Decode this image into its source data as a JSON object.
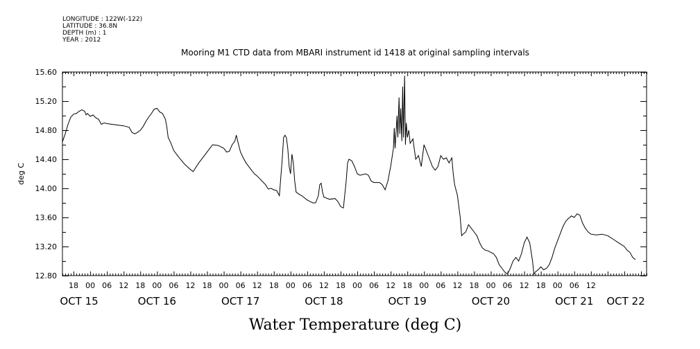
{
  "metadata": {
    "longitude": "LONGITUDE : 122W(-122)",
    "latitude": "LATITUDE : 36.8N",
    "depth": "DEPTH (m) : 1",
    "year": "YEAR : 2012"
  },
  "chart_data": {
    "type": "line",
    "title": "Mooring M1 CTD data from MBARI instrument id 1418 at original sampling intervals",
    "xlabel": "Water Temperature (deg C)",
    "ylabel": "deg C",
    "ylim": [
      12.8,
      15.6
    ],
    "xlim_hours": [
      -10,
      200
    ],
    "yticks": [
      "15.60",
      "15.20",
      "14.80",
      "14.40",
      "14.00",
      "13.60",
      "13.20",
      "12.80"
    ],
    "hour_ticks": [
      "18",
      "00",
      "06",
      "12",
      "18",
      "00",
      "06",
      "12",
      "18",
      "00",
      "06",
      "12",
      "18",
      "00",
      "06",
      "12",
      "18",
      "00",
      "06",
      "12",
      "18",
      "00",
      "06",
      "12",
      "18",
      "00",
      "06",
      "12",
      "18",
      "00",
      "06",
      "12"
    ],
    "day_labels": [
      "OCT 15",
      "OCT 16",
      "OCT 17",
      "OCT 18",
      "OCT 19",
      "OCT 20",
      "OCT 21",
      "OCT 22"
    ],
    "series": [
      {
        "points": [
          [
            -10.0,
            14.64
          ],
          [
            -9.0,
            14.75
          ],
          [
            -8.0,
            14.88
          ],
          [
            -7.0,
            14.98
          ],
          [
            -6.0,
            15.02
          ],
          [
            -5.0,
            15.03
          ],
          [
            -4.0,
            15.06
          ],
          [
            -3.0,
            15.08
          ],
          [
            -2.0,
            15.06
          ],
          [
            -1.5,
            15.01
          ],
          [
            -1.0,
            15.03
          ],
          [
            0.0,
            14.99
          ],
          [
            1.0,
            15.01
          ],
          [
            2.0,
            14.97
          ],
          [
            3.0,
            14.95
          ],
          [
            4.0,
            14.88
          ],
          [
            5.0,
            14.9
          ],
          [
            6.0,
            14.89
          ],
          [
            8.0,
            14.88
          ],
          [
            10.0,
            14.87
          ],
          [
            12.0,
            14.86
          ],
          [
            14.0,
            14.84
          ],
          [
            15.0,
            14.77
          ],
          [
            16.0,
            14.75
          ],
          [
            17.0,
            14.77
          ],
          [
            18.0,
            14.8
          ],
          [
            19.0,
            14.85
          ],
          [
            20.0,
            14.92
          ],
          [
            21.0,
            14.98
          ],
          [
            22.0,
            15.03
          ],
          [
            23.0,
            15.09
          ],
          [
            24.0,
            15.1
          ],
          [
            25.0,
            15.05
          ],
          [
            26.0,
            15.03
          ],
          [
            27.0,
            14.95
          ],
          [
            27.5,
            14.85
          ],
          [
            28.0,
            14.7
          ],
          [
            29.0,
            14.62
          ],
          [
            30.0,
            14.52
          ],
          [
            32.0,
            14.42
          ],
          [
            34.0,
            14.33
          ],
          [
            36.0,
            14.26
          ],
          [
            37.0,
            14.23
          ],
          [
            39.0,
            14.35
          ],
          [
            41.0,
            14.45
          ],
          [
            43.0,
            14.55
          ],
          [
            44.0,
            14.6
          ],
          [
            46.0,
            14.59
          ],
          [
            48.0,
            14.55
          ],
          [
            49.0,
            14.5
          ],
          [
            50.0,
            14.51
          ],
          [
            51.0,
            14.6
          ],
          [
            52.0,
            14.65
          ],
          [
            52.5,
            14.73
          ],
          [
            53.0,
            14.65
          ],
          [
            54.0,
            14.5
          ],
          [
            55.0,
            14.42
          ],
          [
            56.0,
            14.35
          ],
          [
            58.0,
            14.25
          ],
          [
            59.0,
            14.2
          ],
          [
            60.0,
            14.17
          ],
          [
            61.0,
            14.13
          ],
          [
            63.0,
            14.05
          ],
          [
            64.0,
            13.99
          ],
          [
            65.0,
            14.0
          ],
          [
            66.0,
            13.98
          ],
          [
            67.0,
            13.97
          ],
          [
            68.0,
            13.9
          ],
          [
            69.0,
            14.4
          ],
          [
            69.5,
            14.7
          ],
          [
            70.0,
            14.73
          ],
          [
            70.5,
            14.7
          ],
          [
            71.0,
            14.55
          ],
          [
            71.5,
            14.3
          ],
          [
            72.0,
            14.2
          ],
          [
            72.5,
            14.47
          ],
          [
            73.0,
            14.35
          ],
          [
            73.5,
            14.1
          ],
          [
            74.0,
            13.95
          ],
          [
            75.0,
            13.92
          ],
          [
            76.0,
            13.9
          ],
          [
            78.0,
            13.84
          ],
          [
            79.0,
            13.82
          ],
          [
            80.0,
            13.8
          ],
          [
            81.0,
            13.8
          ],
          [
            82.0,
            13.9
          ],
          [
            82.5,
            14.05
          ],
          [
            83.0,
            14.07
          ],
          [
            83.5,
            13.95
          ],
          [
            84.0,
            13.88
          ],
          [
            86.0,
            13.85
          ],
          [
            88.0,
            13.86
          ],
          [
            89.0,
            13.82
          ],
          [
            90.0,
            13.75
          ],
          [
            91.0,
            13.73
          ],
          [
            92.0,
            14.1
          ],
          [
            92.5,
            14.35
          ],
          [
            93.0,
            14.4
          ],
          [
            94.0,
            14.38
          ],
          [
            95.0,
            14.3
          ],
          [
            96.0,
            14.2
          ],
          [
            97.0,
            14.18
          ],
          [
            99.0,
            14.2
          ],
          [
            100.0,
            14.18
          ],
          [
            101.0,
            14.1
          ],
          [
            102.0,
            14.08
          ],
          [
            104.0,
            14.08
          ],
          [
            105.0,
            14.05
          ],
          [
            106.0,
            13.98
          ],
          [
            107.0,
            14.1
          ],
          [
            108.0,
            14.3
          ],
          [
            109.0,
            14.55
          ],
          [
            109.3,
            14.83
          ],
          [
            109.6,
            14.55
          ],
          [
            110.0,
            14.8
          ],
          [
            110.3,
            15.0
          ],
          [
            110.6,
            14.7
          ],
          [
            111.0,
            15.25
          ],
          [
            111.3,
            14.75
          ],
          [
            111.6,
            15.1
          ],
          [
            112.0,
            14.65
          ],
          [
            112.3,
            15.4
          ],
          [
            112.6,
            14.7
          ],
          [
            113.0,
            15.55
          ],
          [
            113.3,
            14.6
          ],
          [
            113.6,
            14.9
          ],
          [
            114.0,
            14.7
          ],
          [
            114.5,
            14.8
          ],
          [
            115.0,
            14.62
          ],
          [
            116.0,
            14.68
          ],
          [
            117.0,
            14.4
          ],
          [
            118.0,
            14.45
          ],
          [
            119.0,
            14.3
          ],
          [
            120.0,
            14.6
          ],
          [
            121.0,
            14.5
          ],
          [
            122.0,
            14.4
          ],
          [
            123.0,
            14.3
          ],
          [
            124.0,
            14.25
          ],
          [
            125.0,
            14.3
          ],
          [
            126.0,
            14.45
          ],
          [
            127.0,
            14.4
          ],
          [
            128.0,
            14.42
          ],
          [
            129.0,
            14.35
          ],
          [
            130.0,
            14.42
          ],
          [
            130.5,
            14.2
          ],
          [
            131.0,
            14.05
          ],
          [
            132.0,
            13.9
          ],
          [
            133.0,
            13.6
          ],
          [
            133.5,
            13.35
          ],
          [
            134.0,
            13.37
          ],
          [
            135.0,
            13.4
          ],
          [
            136.0,
            13.5
          ],
          [
            137.0,
            13.45
          ],
          [
            138.0,
            13.4
          ],
          [
            139.0,
            13.35
          ],
          [
            140.0,
            13.25
          ],
          [
            141.0,
            13.18
          ],
          [
            142.0,
            13.15
          ],
          [
            143.0,
            13.14
          ],
          [
            144.0,
            13.12
          ],
          [
            145.0,
            13.1
          ],
          [
            146.0,
            13.05
          ],
          [
            147.0,
            12.95
          ],
          [
            148.0,
            12.9
          ],
          [
            149.0,
            12.85
          ],
          [
            150.0,
            12.82
          ],
          [
            151.0,
            12.9
          ],
          [
            152.0,
            13.0
          ],
          [
            153.0,
            13.05
          ],
          [
            154.0,
            13.0
          ],
          [
            155.0,
            13.1
          ],
          [
            156.0,
            13.25
          ],
          [
            157.0,
            13.33
          ],
          [
            158.0,
            13.25
          ],
          [
            159.0,
            13.0
          ],
          [
            159.5,
            12.82
          ],
          [
            160.0,
            12.85
          ],
          [
            161.0,
            12.88
          ],
          [
            162.0,
            12.92
          ],
          [
            163.0,
            12.88
          ],
          [
            164.0,
            12.9
          ],
          [
            165.0,
            12.95
          ],
          [
            166.0,
            13.05
          ],
          [
            167.0,
            13.18
          ],
          [
            168.0,
            13.28
          ],
          [
            169.0,
            13.38
          ],
          [
            170.0,
            13.48
          ],
          [
            171.0,
            13.55
          ],
          [
            172.0,
            13.59
          ],
          [
            173.0,
            13.62
          ],
          [
            174.0,
            13.6
          ],
          [
            175.0,
            13.65
          ],
          [
            176.0,
            13.63
          ],
          [
            177.0,
            13.52
          ],
          [
            178.0,
            13.45
          ],
          [
            179.0,
            13.4
          ],
          [
            180.0,
            13.37
          ],
          [
            182.0,
            13.36
          ],
          [
            184.0,
            13.37
          ],
          [
            186.0,
            13.35
          ],
          [
            188.0,
            13.3
          ],
          [
            190.0,
            13.25
          ],
          [
            192.0,
            13.2
          ],
          [
            193.0,
            13.15
          ],
          [
            194.0,
            13.12
          ],
          [
            195.0,
            13.05
          ],
          [
            196.0,
            13.02
          ]
        ]
      }
    ]
  }
}
